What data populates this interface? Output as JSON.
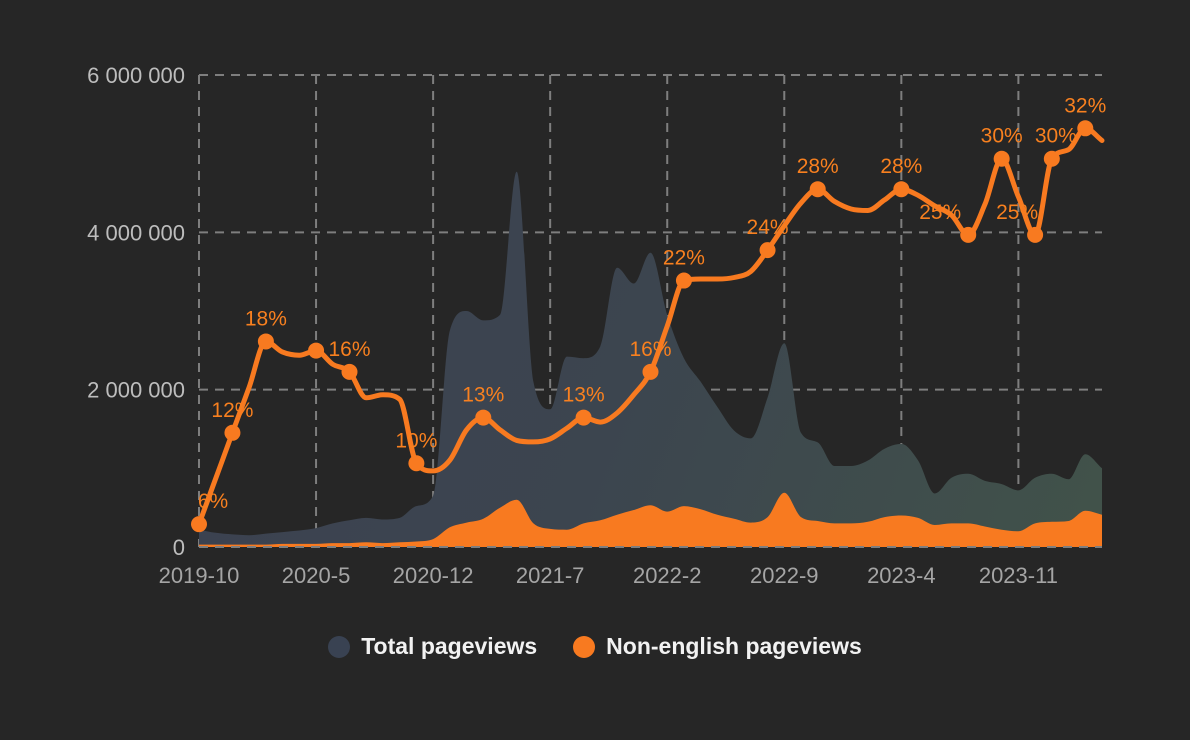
{
  "page": {
    "background": "#262626"
  },
  "legend": {
    "items": [
      {
        "label": "Total pageviews",
        "color": "#394252"
      },
      {
        "label": "Non-english pageviews",
        "color": "#F87A20"
      }
    ]
  },
  "chart_data": {
    "type": "area",
    "title": "",
    "x": [
      "2019-10",
      "2019-11",
      "2019-12",
      "2020-1",
      "2020-2",
      "2020-3",
      "2020-4",
      "2020-5",
      "2020-6",
      "2020-7",
      "2020-8",
      "2020-9",
      "2020-10",
      "2020-11",
      "2020-12",
      "2021-1",
      "2021-2",
      "2021-3",
      "2021-4",
      "2021-5",
      "2021-6",
      "2021-7",
      "2021-8",
      "2021-9",
      "2021-10",
      "2021-11",
      "2021-12",
      "2022-1",
      "2022-2",
      "2022-3",
      "2022-4",
      "2022-5",
      "2022-6",
      "2022-7",
      "2022-8",
      "2022-9",
      "2022-10",
      "2022-11",
      "2022-12",
      "2023-1",
      "2023-2",
      "2023-3",
      "2023-4",
      "2023-5",
      "2023-6",
      "2023-7",
      "2023-8",
      "2023-9",
      "2023-10",
      "2023-11",
      "2023-12",
      "2024-1",
      "2024-2",
      "2024-3",
      "2024-4"
    ],
    "series": [
      {
        "name": "Total pageviews",
        "type": "area",
        "colors": [
          "#3B4151",
          "#3C454F",
          "#41524A"
        ],
        "values": [
          220000,
          180000,
          160000,
          150000,
          170000,
          190000,
          210000,
          240000,
          300000,
          340000,
          370000,
          350000,
          370000,
          520000,
          650000,
          2750000,
          3000000,
          2880000,
          2950000,
          4770000,
          2100000,
          1750000,
          2420000,
          2400000,
          2550000,
          3550000,
          3350000,
          3740000,
          2950000,
          2400000,
          2100000,
          1780000,
          1480000,
          1380000,
          1900000,
          2590000,
          1450000,
          1330000,
          1030000,
          1030000,
          1100000,
          1250000,
          1310000,
          1100000,
          680000,
          880000,
          930000,
          840000,
          800000,
          720000,
          880000,
          930000,
          860000,
          1180000,
          1000000
        ]
      },
      {
        "name": "Non-english pageviews",
        "type": "area",
        "color": "#F87A20",
        "values": [
          30000,
          30000,
          30000,
          30000,
          30000,
          40000,
          40000,
          40000,
          50000,
          50000,
          60000,
          50000,
          60000,
          70000,
          100000,
          250000,
          310000,
          360000,
          500000,
          600000,
          300000,
          230000,
          220000,
          300000,
          340000,
          410000,
          470000,
          530000,
          450000,
          520000,
          480000,
          410000,
          360000,
          310000,
          380000,
          690000,
          380000,
          330000,
          300000,
          300000,
          320000,
          380000,
          400000,
          370000,
          280000,
          300000,
          300000,
          260000,
          220000,
          200000,
          300000,
          320000,
          330000,
          460000,
          410000
        ]
      },
      {
        "name": "Non-english share",
        "type": "line",
        "color": "#F87A20",
        "unit": "%",
        "values": [
          6,
          9,
          12,
          15,
          18,
          17.3,
          17.1,
          17.4,
          16.5,
          16,
          14.3,
          14.5,
          14.2,
          10,
          9.5,
          10.2,
          12.2,
          13,
          12.2,
          11.5,
          11.4,
          11.6,
          12.3,
          13,
          12.7,
          13.3,
          14.5,
          16,
          19,
          22,
          22.1,
          22.1,
          22.2,
          22.6,
          24,
          25.6,
          27.1,
          28,
          27.2,
          26.7,
          26.6,
          27.3,
          28,
          27.6,
          26.9,
          26.3,
          25,
          27,
          30,
          27.5,
          25,
          30,
          30.6,
          32,
          31.2
        ],
        "markers": [
          {
            "i": 0,
            "label": "6%",
            "dx": 14
          },
          {
            "i": 2,
            "label": "12%"
          },
          {
            "i": 4,
            "label": "18%"
          },
          {
            "i": 7,
            "label": ""
          },
          {
            "i": 9,
            "label": "16%"
          },
          {
            "i": 13,
            "label": "10%"
          },
          {
            "i": 17,
            "label": "13%"
          },
          {
            "i": 23,
            "label": "13%"
          },
          {
            "i": 27,
            "label": "16%"
          },
          {
            "i": 29,
            "label": "22%"
          },
          {
            "i": 34,
            "label": "24%"
          },
          {
            "i": 37,
            "label": "28%"
          },
          {
            "i": 42,
            "label": "28%"
          },
          {
            "i": 46,
            "label": "25%",
            "dx": -28
          },
          {
            "i": 48,
            "label": "30%"
          },
          {
            "i": 50,
            "label": "25%",
            "dx": -18
          },
          {
            "i": 51,
            "label": "30%",
            "dx": 4
          },
          {
            "i": 53,
            "label": "32%"
          }
        ]
      }
    ],
    "y_axis": {
      "min": 0,
      "max": 6000000,
      "ticks": [
        {
          "value": 0,
          "label": "0"
        },
        {
          "value": 2000000,
          "label": "2 000 000"
        },
        {
          "value": 4000000,
          "label": "4 000 000"
        },
        {
          "value": 6000000,
          "label": "6 000 000"
        }
      ]
    },
    "x_axis": {
      "ticks": [
        {
          "i": 0,
          "label": "2019-10"
        },
        {
          "i": 7,
          "label": "2020-5"
        },
        {
          "i": 14,
          "label": "2020-12"
        },
        {
          "i": 21,
          "label": "2021-7"
        },
        {
          "i": 28,
          "label": "2022-2"
        },
        {
          "i": 35,
          "label": "2022-9"
        },
        {
          "i": 42,
          "label": "2023-4"
        },
        {
          "i": 49,
          "label": "2023-11"
        }
      ]
    },
    "percent_axis": {
      "min": 4.5,
      "max": 35.5,
      "visible": false
    },
    "grid": {
      "style": "dashed",
      "color": "#7E7E7E",
      "dash": "9 7"
    }
  }
}
